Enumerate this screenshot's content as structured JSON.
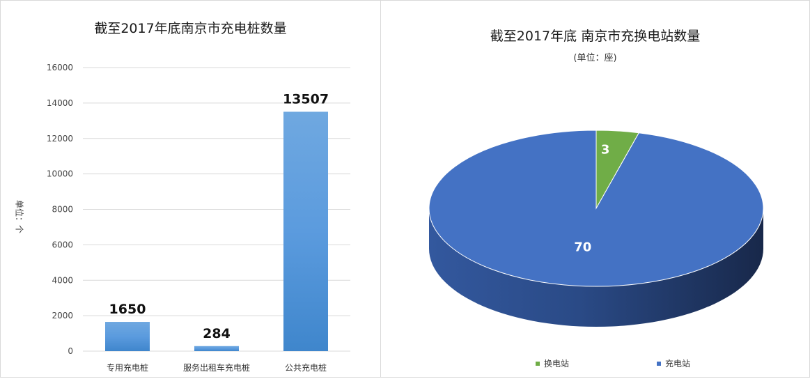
{
  "bar_panel": {
    "title": "截至2017年底南京市充电桩数量",
    "y_axis_label": "单位：个"
  },
  "pie_panel": {
    "title": "截至2017年底 南京市充换电站数量",
    "subtitle": "(单位：座)"
  },
  "colors": {
    "bar_light": "#6fa8e0",
    "bar_dark": "#3f86cc",
    "pie_blue": "#4472c4",
    "pie_green": "#70ad47",
    "gridline": "#d9d9d9"
  },
  "chart_data": [
    {
      "type": "bar",
      "title": "截至2017年底南京市充电桩数量",
      "xlabel": "",
      "ylabel": "单位：个",
      "categories": [
        "专用充电桩",
        "服务出租车充电桩",
        "公共充电桩"
      ],
      "values": [
        1650,
        284,
        13507
      ],
      "data_labels": [
        "1650",
        "284",
        "13507"
      ],
      "ylim": [
        0,
        16000
      ],
      "yticks": [
        "0",
        "2000",
        "4000",
        "6000",
        "8000",
        "10000",
        "12000",
        "14000",
        "16000"
      ],
      "grid": true
    },
    {
      "type": "pie",
      "title": "截至2017年底 南京市充换电站数量",
      "subtitle": "(单位：座)",
      "categories": [
        "换电站",
        "充电站"
      ],
      "values": [
        3,
        70
      ],
      "data_labels": [
        "3",
        "70"
      ],
      "legend_position": "bottom",
      "style": "3d"
    }
  ]
}
